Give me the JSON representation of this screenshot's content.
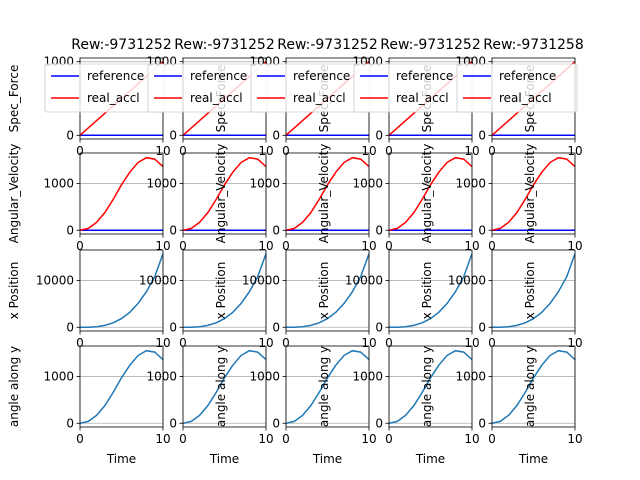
{
  "chart_data": {
    "type": "line",
    "layout": "4x5 grid of subplots",
    "column_titles": [
      "Rew:-9731252",
      "Rew:-9731252",
      "Rew:-9731252",
      "Rew:-9731252",
      "Rew:-9731258"
    ],
    "xlabel": "Time",
    "x_ticks": [
      0,
      10
    ],
    "xlim": [
      0,
      10
    ],
    "grid": true,
    "colors": {
      "reference": "#0000ff",
      "real_accl": "#ff0000",
      "default": "#1f77b4"
    },
    "rows": [
      {
        "ylabel": "Spec_Force",
        "ylim": [
          -50,
          1050
        ],
        "y_ticks": [
          0,
          1000
        ],
        "legend": {
          "placement": "upper center",
          "entries": [
            "reference",
            "real_accl"
          ]
        },
        "series": [
          {
            "name": "reference",
            "color": "#0000ff",
            "x": [
              0,
              10
            ],
            "y": [
              0,
              0
            ]
          },
          {
            "name": "real_accl",
            "color": "#ff0000",
            "x": [
              0,
              10
            ],
            "y": [
              0,
              1000
            ]
          }
        ]
      },
      {
        "ylabel": "Angular_Velocity",
        "ylim": [
          -80,
          1650
        ],
        "y_ticks": [
          0,
          1000
        ],
        "series": [
          {
            "name": "reference",
            "color": "#0000ff",
            "x": [
              0,
              10
            ],
            "y": [
              0,
              0
            ]
          },
          {
            "name": "real_accl",
            "color": "#ff0000",
            "x": [
              0,
              1,
              2,
              3,
              4,
              5,
              6,
              7,
              8,
              9,
              10
            ],
            "y": [
              0,
              40,
              170,
              380,
              660,
              970,
              1240,
              1450,
              1550,
              1520,
              1360
            ]
          }
        ]
      },
      {
        "ylabel": "x Position",
        "ylim": [
          -800,
          16500
        ],
        "y_ticks": [
          0,
          10000
        ],
        "series": [
          {
            "color": "#1f77b4",
            "x": [
              0,
              1,
              2,
              3,
              4,
              5,
              6,
              7,
              8,
              9,
              10
            ],
            "y": [
              0,
              15,
              120,
              400,
              950,
              1850,
              3200,
              5100,
              7600,
              10800,
              15700
            ]
          }
        ]
      },
      {
        "ylabel": "angle along y",
        "ylim": [
          -80,
          1650
        ],
        "y_ticks": [
          0,
          1000
        ],
        "series": [
          {
            "color": "#1f77b4",
            "x": [
              0,
              1,
              2,
              3,
              4,
              5,
              6,
              7,
              8,
              9,
              10
            ],
            "y": [
              0,
              40,
              170,
              380,
              660,
              970,
              1240,
              1450,
              1550,
              1520,
              1360
            ]
          }
        ]
      }
    ]
  }
}
